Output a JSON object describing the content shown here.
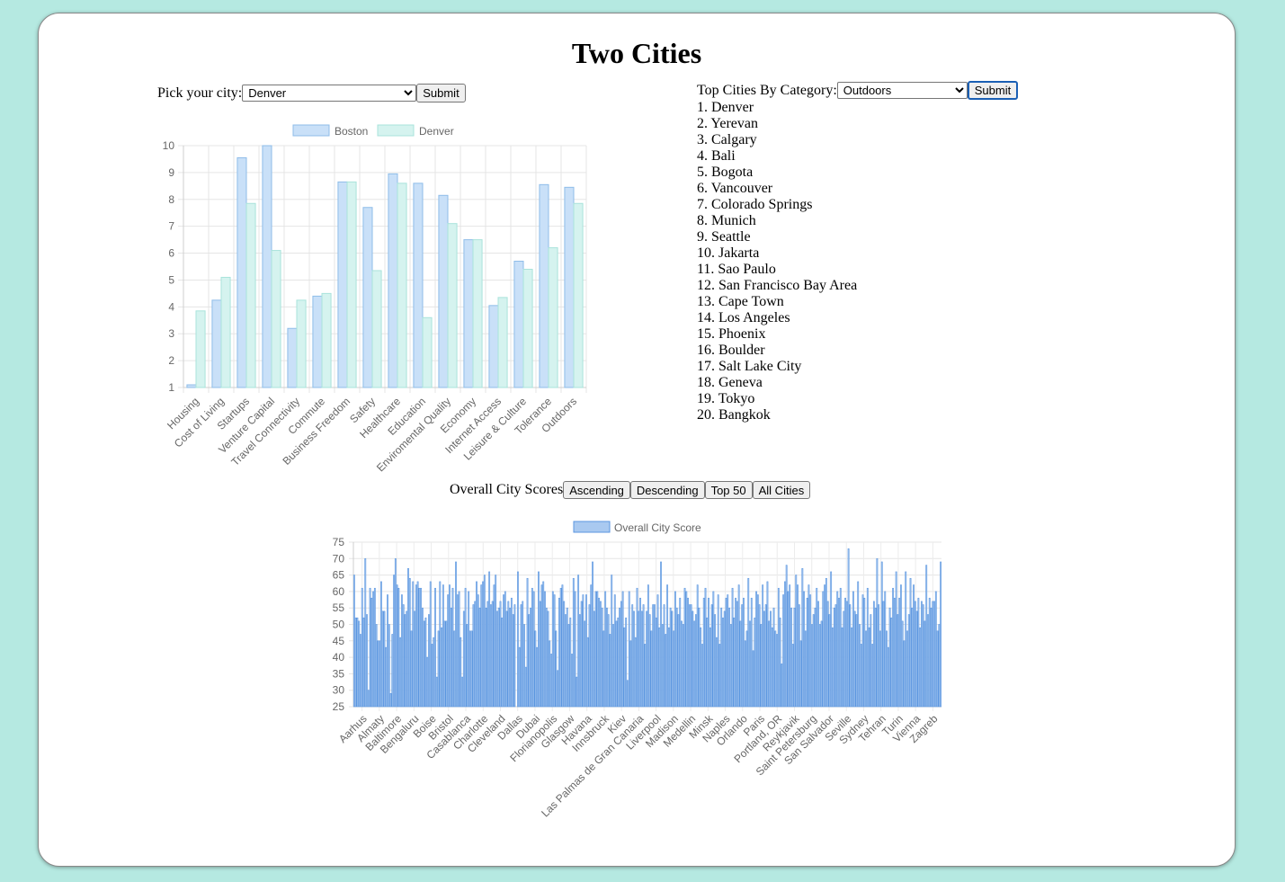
{
  "page": {
    "title": "Two Cities"
  },
  "city_picker": {
    "label": "Pick your city:",
    "selected": "Denver",
    "submit_label": "Submit"
  },
  "category_picker": {
    "label": "Top Cities By Category:",
    "selected": "Outdoors",
    "submit_label": "Submit"
  },
  "top_cities": [
    "1. Denver",
    "2. Yerevan",
    "3. Calgary",
    "4. Bali",
    "5. Bogota",
    "6. Vancouver",
    "7. Colorado Springs",
    "8. Munich",
    "9. Seattle",
    "10. Jakarta",
    "11. Sao Paulo",
    "12. San Francisco Bay Area",
    "13. Cape Town",
    "14. Los Angeles",
    "15. Phoenix",
    "16. Boulder",
    "17. Salt Lake City",
    "18. Geneva",
    "19. Tokyo",
    "20. Bangkok"
  ],
  "overall": {
    "label": "Overall City Scores",
    "buttons": [
      "Ascending",
      "Descending",
      "Top 50",
      "All Cities"
    ]
  },
  "colors": {
    "boston_fill": "#c9e0f8",
    "boston_stroke": "#8fbde9",
    "denver_fill": "#d5f3ef",
    "denver_stroke": "#a9e3db",
    "overall_fill": "#a9c9f0",
    "overall_stroke": "#5b96e0"
  },
  "chart_data": [
    {
      "type": "bar",
      "categories": [
        "Housing",
        "Cost of Living",
        "Startups",
        "Venture Capital",
        "Travel Connectivity",
        "Commute",
        "Business Freedom",
        "Safety",
        "Healthcare",
        "Education",
        "Enviromental Quality",
        "Economy",
        "Internet Access",
        "Leisure & Culture",
        "Tolerance",
        "Outdoors"
      ],
      "series": [
        {
          "name": "Boston",
          "values": [
            1.1,
            4.25,
            9.55,
            10.0,
            3.2,
            4.4,
            8.65,
            7.7,
            8.95,
            8.6,
            8.15,
            6.5,
            4.05,
            5.7,
            8.55,
            8.45
          ]
        },
        {
          "name": "Denver",
          "values": [
            3.85,
            5.1,
            7.85,
            6.1,
            4.25,
            4.5,
            8.65,
            5.35,
            8.6,
            3.6,
            7.1,
            6.5,
            4.35,
            5.4,
            6.2,
            7.85
          ]
        }
      ],
      "ylim": [
        1,
        10
      ],
      "yticks": [
        1,
        2,
        3,
        4,
        5,
        6,
        7,
        8,
        9,
        10
      ],
      "grid": true,
      "legend": "top"
    },
    {
      "type": "bar",
      "tick_labels": [
        "Aarhus",
        "Almaty",
        "Baltimore",
        "Bengaluru",
        "Boise",
        "Bristol",
        "Casablanca",
        "Charlotte",
        "Cleveland",
        "Dallas",
        "Dubai",
        "Florianopolis",
        "Glasgow",
        "Havana",
        "Innsbruck",
        "Kiev",
        "Las Palmas de Gran Canaria",
        "Liverpool",
        "Madison",
        "Medellin",
        "Minsk",
        "Naples",
        "Orlando",
        "Paris",
        "Portland, OR",
        "Reykjavik",
        "Saint Petersburg",
        "San Salvador",
        "Seville",
        "Sydney",
        "Tehran",
        "Turin",
        "Vienna",
        "Zagreb"
      ],
      "series": [
        {
          "name": "Overall City Score",
          "values": [
            65,
            52,
            52,
            51,
            47,
            61,
            52,
            70,
            53,
            30,
            61,
            58,
            60,
            61,
            50,
            45,
            45,
            63,
            54,
            54,
            43,
            59,
            50,
            29,
            47,
            65,
            70,
            62,
            61,
            46,
            59,
            56,
            53,
            54,
            67,
            64,
            48,
            63,
            54,
            62,
            63,
            61,
            61,
            55,
            51,
            52,
            40,
            53,
            63,
            44,
            46,
            61,
            34,
            48,
            63,
            49,
            62,
            51,
            51,
            59,
            62,
            55,
            61,
            48,
            69,
            59,
            60,
            46,
            34,
            54,
            61,
            50,
            60,
            48,
            48,
            56,
            57,
            63,
            59,
            55,
            62,
            63,
            65,
            55,
            57,
            66,
            56,
            57,
            62,
            65,
            54,
            55,
            57,
            52,
            59,
            60,
            54,
            57,
            55,
            58,
            53,
            56,
            24,
            66,
            43,
            56,
            57,
            50,
            37,
            64,
            53,
            55,
            61,
            60,
            48,
            43,
            66,
            57,
            62,
            63,
            60,
            55,
            54,
            45,
            41,
            60,
            59,
            48,
            36,
            58,
            61,
            62,
            57,
            53,
            55,
            50,
            52,
            41,
            64,
            60,
            34,
            65,
            53,
            57,
            59,
            51,
            59,
            46,
            56,
            62,
            69,
            54,
            60,
            60,
            58,
            57,
            55,
            48,
            60,
            55,
            53,
            47,
            65,
            50,
            59,
            51,
            52,
            55,
            57,
            60,
            49,
            52,
            33,
            60,
            45,
            56,
            54,
            46,
            61,
            54,
            58,
            54,
            56,
            44,
            54,
            62,
            53,
            48,
            56,
            56,
            52,
            59,
            49,
            69,
            50,
            56,
            47,
            62,
            49,
            55,
            54,
            48,
            60,
            55,
            53,
            58,
            51,
            50,
            61,
            60,
            58,
            56,
            56,
            54,
            51,
            53,
            62,
            55,
            49,
            44,
            58,
            61,
            52,
            58,
            49,
            56,
            60,
            53,
            46,
            59,
            44,
            55,
            52,
            54,
            58,
            59,
            55,
            50,
            61,
            52,
            58,
            57,
            62,
            51,
            56,
            58,
            45,
            48,
            64,
            51,
            58,
            42,
            52,
            60,
            59,
            56,
            50,
            62,
            54,
            56,
            63,
            51,
            54,
            49,
            55,
            48,
            47,
            61,
            52,
            38,
            59,
            63,
            68,
            60,
            62,
            55,
            44,
            55,
            65,
            62,
            56,
            45,
            67,
            60,
            48,
            58,
            62,
            59,
            50,
            53,
            55,
            61,
            57,
            50,
            51,
            60,
            62,
            64,
            57,
            53,
            66,
            49,
            55,
            56,
            60,
            58,
            61,
            49,
            54,
            58,
            57,
            73,
            56,
            49,
            60,
            54,
            53,
            63,
            50,
            44,
            59,
            58,
            48,
            61,
            49,
            53,
            44,
            57,
            55,
            70,
            56,
            48,
            69,
            57,
            60,
            48,
            43,
            55,
            52,
            61,
            58,
            66,
            53,
            58,
            62,
            51,
            45,
            66,
            48,
            53,
            64,
            55,
            62,
            57,
            54,
            58,
            49,
            57,
            56,
            51,
            68,
            53,
            58,
            55,
            57,
            57,
            60,
            48,
            50,
            69
          ]
        }
      ],
      "ylim": [
        25,
        75
      ],
      "yticks": [
        25,
        30,
        35,
        40,
        45,
        50,
        55,
        60,
        65,
        70,
        75
      ],
      "grid": true,
      "legend": "top"
    }
  ]
}
